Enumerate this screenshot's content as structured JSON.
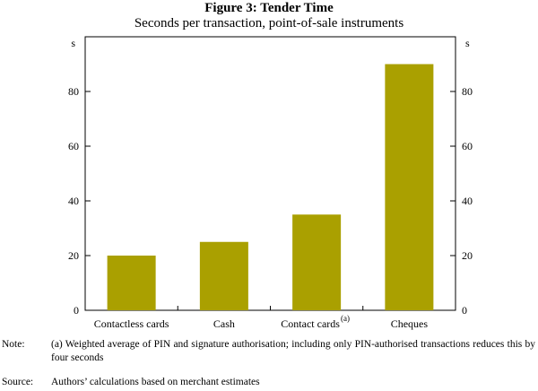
{
  "figure_title": "Figure 3: Tender Time",
  "figure_subtitle": "Seconds per transaction, point-of-sale instruments",
  "chart_data": {
    "type": "bar",
    "title": "Figure 3: Tender Time",
    "subtitle": "Seconds per transaction, point-of-sale instruments",
    "categories": [
      "Contactless cards",
      "Cash",
      "Contact cards",
      "Cheques"
    ],
    "category_superscripts": [
      "",
      "",
      "(a)",
      ""
    ],
    "values": [
      20,
      25,
      35,
      90
    ],
    "ylim": [
      0,
      100
    ],
    "yticks": [
      0,
      20,
      40,
      60,
      80
    ],
    "y_unit_left": "s",
    "y_unit_right": "s",
    "bar_color": "#AAA000",
    "grid": false,
    "legend": "none"
  },
  "notes": {
    "note_label": "Note:",
    "note_text": "(a) Weighted average of PIN and signature authorisation; including only PIN-authorised transactions reduces this by four seconds",
    "source_label": "Source:",
    "source_text": "Authors’ calculations based on merchant estimates"
  }
}
